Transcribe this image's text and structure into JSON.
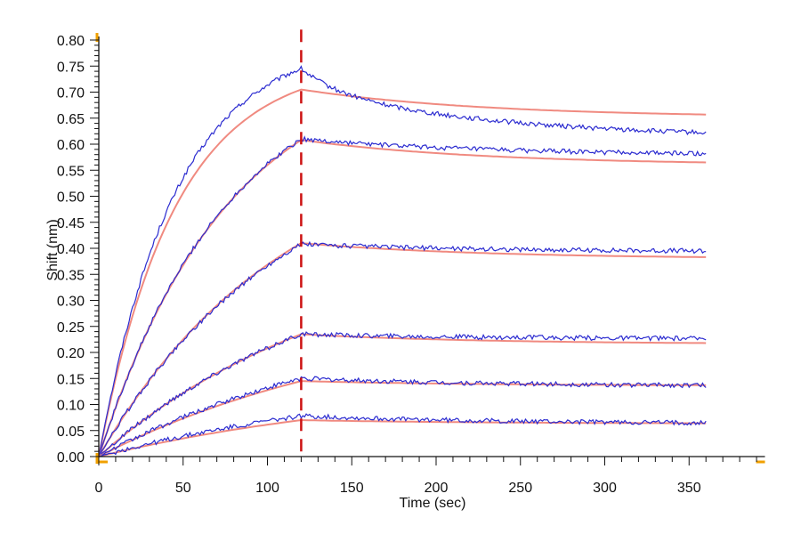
{
  "chart_data": {
    "type": "line",
    "title": "",
    "xlabel": "Time (sec)",
    "ylabel": "Shift (nm)",
    "xlim": [
      0,
      395
    ],
    "ylim": [
      0,
      0.8
    ],
    "x_ticks": [
      0,
      50,
      100,
      150,
      200,
      250,
      300,
      350
    ],
    "x_tick_labels": [
      "0",
      "50",
      "100",
      "150",
      "200",
      "250",
      "300",
      "350"
    ],
    "y_ticks": [
      0,
      0.05,
      0.1,
      0.15,
      0.2,
      0.25,
      0.3,
      0.35,
      0.4,
      0.45,
      0.5,
      0.55,
      0.6,
      0.65,
      0.7,
      0.75,
      0.8
    ],
    "y_tick_labels": [
      "0.00",
      "0.05",
      "0.10",
      "0.15",
      "0.20",
      "0.25",
      "0.30",
      "0.35",
      "0.40",
      "0.45",
      "0.50",
      "0.55",
      "0.60",
      "0.65",
      "0.70",
      "0.75",
      "0.80"
    ],
    "grid": false,
    "legend": "none",
    "dissociation_start_x": 120,
    "x_end": 360,
    "colors": {
      "measured": "#2b2bd0",
      "fit": "#f08a80",
      "marker": "#cc1111",
      "axis": "#111111",
      "axis_end_marker": "#f0a000"
    },
    "series": [
      {
        "peak_measured": 0.745,
        "peak_fit": 0.705,
        "end_measured": 0.658,
        "end_fit": 0.657
      },
      {
        "peak_measured": 0.61,
        "peak_fit": 0.608,
        "end_measured": 0.582,
        "end_fit": 0.565
      },
      {
        "peak_measured": 0.408,
        "peak_fit": 0.41,
        "end_measured": 0.395,
        "end_fit": 0.383
      },
      {
        "peak_measured": 0.235,
        "peak_fit": 0.235,
        "end_measured": 0.227,
        "end_fit": 0.218
      },
      {
        "peak_measured": 0.15,
        "peak_fit": 0.145,
        "end_measured": 0.137,
        "end_fit": 0.137
      },
      {
        "peak_measured": 0.078,
        "peak_fit": 0.07,
        "end_measured": 0.065,
        "end_fit": 0.064
      }
    ]
  }
}
